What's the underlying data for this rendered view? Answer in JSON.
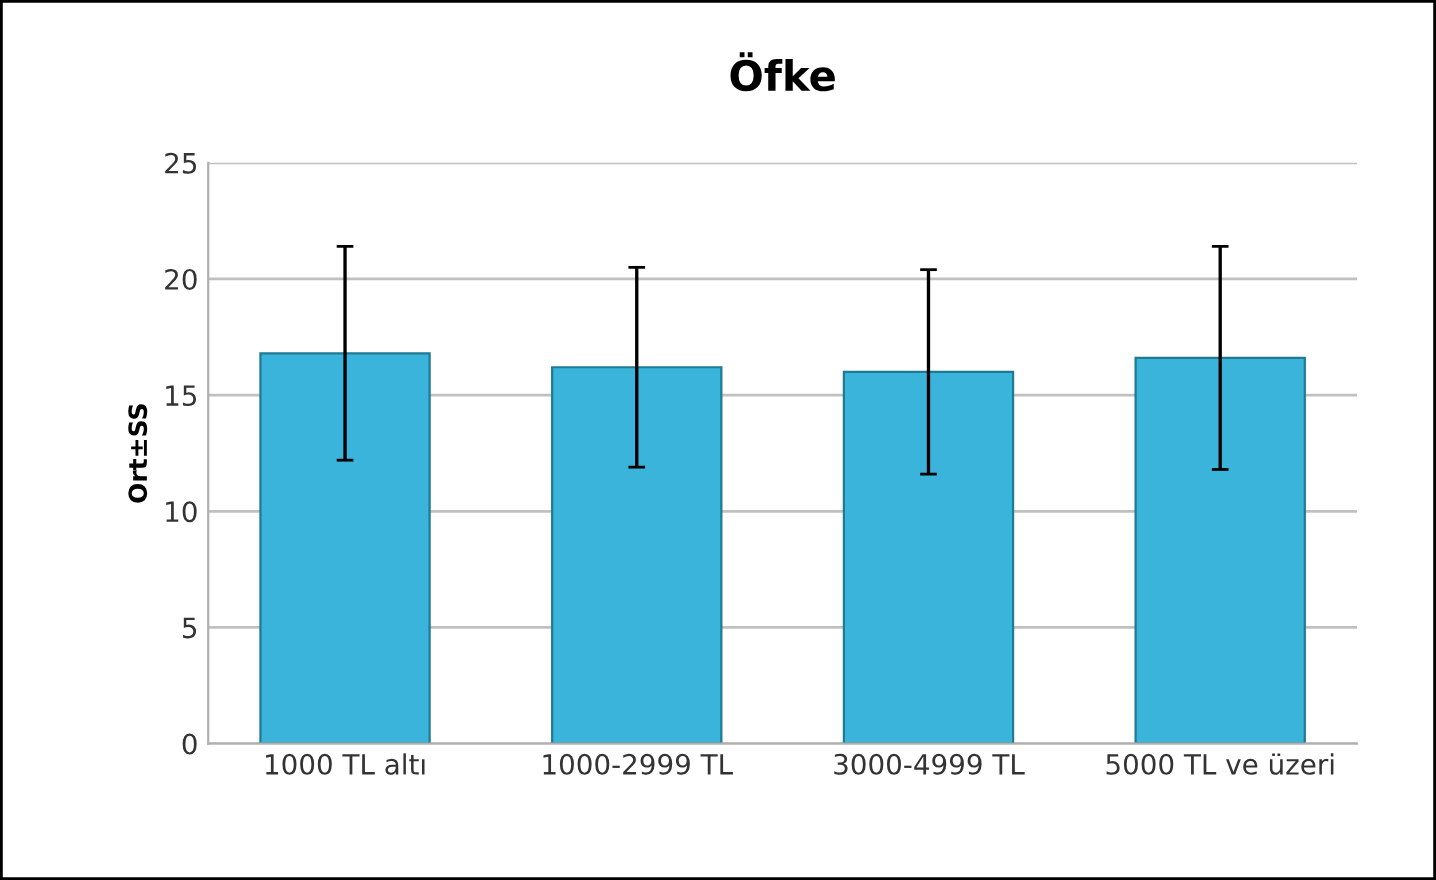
{
  "chart_data": {
    "type": "bar",
    "title": "Öfke",
    "ylabel": "Ort±SS",
    "categories": [
      "1000 TL altı",
      "1000-2999 TL",
      "3000-4999 TL",
      "5000 TL ve üzeri"
    ],
    "values": [
      16.8,
      16.2,
      16.0,
      16.6
    ],
    "errors": [
      4.6,
      4.3,
      4.4,
      4.8
    ],
    "color": "#3ab4da",
    "ylim": [
      0,
      25
    ],
    "yticks": [
      0,
      5,
      10,
      15,
      20,
      25
    ],
    "grid": "y"
  }
}
